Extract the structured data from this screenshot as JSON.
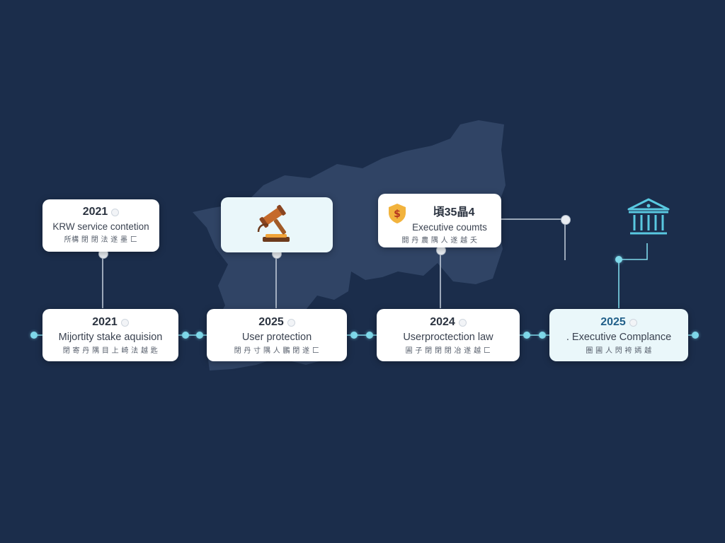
{
  "colors": {
    "background": "#1b2d4b",
    "map": "#34496a",
    "connector": "#7fd9ea",
    "card": "#ffffff",
    "card_highlight": "#eaf7fa",
    "bank_icon": "#59c8e0",
    "shield_icon": "#f2b33d",
    "gavel_icon": "#b0642c"
  },
  "top_cards": [
    {
      "year": "2021",
      "title": "KRW service contetion",
      "sub": "所構 閉 閉 法 遂 墨 匚"
    },
    {
      "icon": "gavel-icon"
    },
    {
      "year": "頃35晶4",
      "title": "Executive coumts",
      "sub": "闘 丹  農 隅 人 遂 越 夭",
      "icon": "shield-dollar-icon"
    },
    {
      "icon": "bank-building-icon"
    }
  ],
  "bottom_cards": [
    {
      "year": "2021",
      "title": "Mijortity stake aquision",
      "sub": "閉 寄 丹 隅 目  上 崎 法 越 匙"
    },
    {
      "year": "2025",
      "title": "User protection",
      "sub": "閉 丹 寸 隅 人 鵬 閉 遂 匚"
    },
    {
      "year": "2024",
      "title": "Userproctection law",
      "sub": "圃 子 閉 閉 閉 冶 遂 越 匚"
    },
    {
      "year": "2025",
      "title": ". Executive Complance",
      "sub": "圏 圃 人 閃 袴 嫣 越"
    }
  ]
}
